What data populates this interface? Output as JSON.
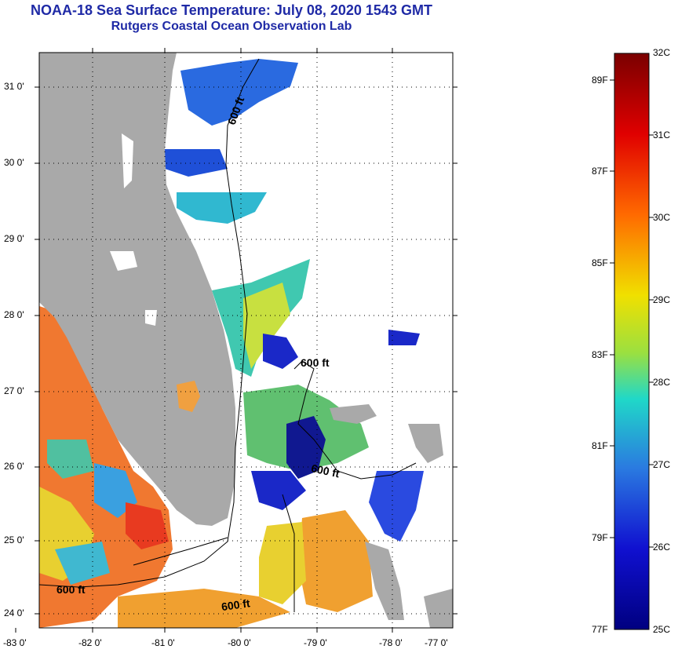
{
  "header": {
    "title": "NOAA-18 Sea Surface Temperature:  July 08, 2020 1543 GMT",
    "subtitle": "Rutgers Coastal Ocean Observation Lab"
  },
  "map": {
    "lat_ticks": [
      "31 0'",
      "30 0'",
      "29 0'",
      "28 0'",
      "27 0'",
      "26 0'",
      "25 0'",
      "24 0'"
    ],
    "lon_ticks": [
      "-83 0'",
      "-82 0'",
      "-81 0'",
      "-80 0'",
      "-79 0'",
      "-78 0'",
      "-77 0'"
    ],
    "isobath_labels": [
      "600 ft",
      "600 ft",
      "600 ft",
      "600 ft",
      "600 ft"
    ],
    "colors": {
      "land": "#a9a9a9",
      "cloud": "#ffffff",
      "isobath": "#000000"
    }
  },
  "colorbar": {
    "celsius": [
      "32C",
      "31C",
      "30C",
      "29C",
      "28C",
      "27C",
      "26C",
      "25C"
    ],
    "fahrenheit": [
      "89F",
      "87F",
      "85F",
      "83F",
      "81F",
      "79F",
      "77F"
    ],
    "stops": [
      "#7a0000",
      "#e00000",
      "#ff6a00",
      "#f0e000",
      "#9be040",
      "#20d8c8",
      "#2a7ae0",
      "#1010d0",
      "#000080"
    ]
  }
}
